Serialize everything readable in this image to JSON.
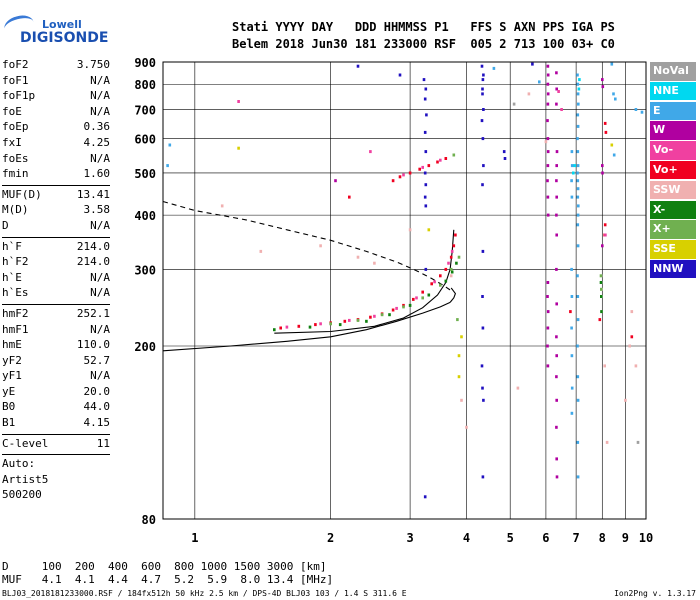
{
  "logo": {
    "top": "Lowell",
    "main": "DIGISONDE"
  },
  "header": {
    "line1": "Stati YYYY DAY   DDD HHMMSS P1   FFS S AXN PPS IGA PS",
    "line2": "Belem 2018 Jun30 181 233000 RSF  005 2 713 100 03+ C0"
  },
  "params": [
    {
      "k": "foF2",
      "v": "3.750"
    },
    {
      "k": "foF1",
      "v": "N/A"
    },
    {
      "k": "foF1p",
      "v": "N/A"
    },
    {
      "k": "foE",
      "v": "N/A"
    },
    {
      "k": "foEp",
      "v": "0.36"
    },
    {
      "k": "fxI",
      "v": "4.25"
    },
    {
      "k": "foEs",
      "v": "N/A"
    },
    {
      "k": "fmin",
      "v": "1.60"
    },
    {
      "sep": true
    },
    {
      "k": "MUF(D)",
      "v": "13.41"
    },
    {
      "k": "M(D)",
      "v": "3.58"
    },
    {
      "k": "D",
      "v": "N/A"
    },
    {
      "sep": true
    },
    {
      "k": "h`F",
      "v": "214.0"
    },
    {
      "k": "h`F2",
      "v": "214.0"
    },
    {
      "k": "h`E",
      "v": "N/A"
    },
    {
      "k": "h`Es",
      "v": "N/A"
    },
    {
      "sep": true
    },
    {
      "k": "hmF2",
      "v": "252.1"
    },
    {
      "k": "hmF1",
      "v": "N/A"
    },
    {
      "k": "hmE",
      "v": "110.0"
    },
    {
      "k": "yF2",
      "v": "52.7"
    },
    {
      "k": "yF1",
      "v": "N/A"
    },
    {
      "k": "yE",
      "v": "20.0"
    },
    {
      "k": "B0",
      "v": "44.0"
    },
    {
      "k": "B1",
      "v": "4.15"
    },
    {
      "sep": true
    },
    {
      "k": "C-level",
      "v": "11"
    },
    {
      "sep": true
    },
    {
      "k": "Auto:",
      "v": ""
    },
    {
      "k": "Artist5",
      "v": ""
    },
    {
      "k": "500200",
      "v": ""
    }
  ],
  "legend": [
    {
      "label": "NoVal",
      "color": "#a0a0a0"
    },
    {
      "label": "NNE",
      "color": "#00d8f0"
    },
    {
      "label": "E",
      "color": "#40a8e8"
    },
    {
      "label": "W",
      "color": "#b000a0"
    },
    {
      "label": "Vo-",
      "color": "#f040a0"
    },
    {
      "label": "Vo+",
      "color": "#f00020"
    },
    {
      "label": "SSW",
      "color": "#f0b0b0"
    },
    {
      "label": "X-",
      "color": "#108010"
    },
    {
      "label": "X+",
      "color": "#70b050"
    },
    {
      "label": "SSE",
      "color": "#d8d000"
    },
    {
      "label": "NNW",
      "color": "#2010c0"
    }
  ],
  "bottom": {
    "line1": "D     100  200  400  600  800 1000 1500 3000 [km]",
    "line2": "MUF   4.1  4.1  4.4  4.7  5.2  5.9  8.0 13.4 [MHz]"
  },
  "footer": {
    "left": "BLJ03_2018181233000.RSF / 184fx512h 50 kHz 2.5 km / DPS-4D BLJ03 103 / 1.4 S 311.6 E",
    "right": "Ion2Png v. 1.3.17"
  },
  "chart_data": {
    "type": "scatter",
    "title": "",
    "xlabel": "",
    "ylabel": "",
    "x_scale": "log",
    "y_scale": "log",
    "xlim": [
      0.85,
      10
    ],
    "ylim": [
      80,
      900
    ],
    "x_ticks": [
      1,
      2,
      3,
      4,
      5,
      6,
      7,
      8,
      9,
      10
    ],
    "y_ticks": [
      80,
      200,
      300,
      400,
      500,
      600,
      700,
      800,
      900
    ],
    "grid": true,
    "series": [
      {
        "name": "NNW",
        "color": "#2010c0",
        "points": [
          [
            3.22,
            820
          ],
          [
            3.25,
            780
          ],
          [
            3.24,
            740
          ],
          [
            3.26,
            680
          ],
          [
            3.24,
            620
          ],
          [
            3.25,
            560
          ],
          [
            3.24,
            500
          ],
          [
            3.25,
            470
          ],
          [
            3.24,
            440
          ],
          [
            3.25,
            420
          ],
          [
            3.25,
            300
          ],
          [
            3.24,
            90
          ],
          [
            4.33,
            880
          ],
          [
            4.35,
            820
          ],
          [
            4.34,
            760
          ],
          [
            4.36,
            700
          ],
          [
            4.33,
            660
          ],
          [
            4.35,
            600
          ],
          [
            4.36,
            520
          ],
          [
            4.34,
            470
          ],
          [
            4.35,
            330
          ],
          [
            4.34,
            260
          ],
          [
            4.35,
            220
          ],
          [
            4.33,
            180
          ],
          [
            4.34,
            160
          ],
          [
            4.36,
            150
          ],
          [
            4.35,
            100
          ],
          [
            4.85,
            560
          ],
          [
            4.87,
            540
          ],
          [
            4.36,
            840
          ],
          [
            4.34,
            780
          ],
          [
            2.85,
            840
          ],
          [
            5.6,
            890
          ],
          [
            2.3,
            880
          ]
        ]
      },
      {
        "name": "W",
        "color": "#b000a0",
        "points": [
          [
            6.06,
            880
          ],
          [
            6.07,
            840
          ],
          [
            6.06,
            800
          ],
          [
            6.07,
            760
          ],
          [
            6.06,
            720
          ],
          [
            6.05,
            660
          ],
          [
            6.06,
            600
          ],
          [
            6.07,
            560
          ],
          [
            6.06,
            520
          ],
          [
            6.05,
            480
          ],
          [
            6.06,
            440
          ],
          [
            6.07,
            400
          ],
          [
            6.06,
            280
          ],
          [
            6.05,
            260
          ],
          [
            6.07,
            240
          ],
          [
            6.06,
            220
          ],
          [
            6.05,
            200
          ],
          [
            6.06,
            180
          ],
          [
            6.33,
            850
          ],
          [
            6.34,
            780
          ],
          [
            6.33,
            720
          ],
          [
            6.35,
            560
          ],
          [
            6.34,
            520
          ],
          [
            6.33,
            480
          ],
          [
            6.34,
            440
          ],
          [
            6.33,
            400
          ],
          [
            6.34,
            360
          ],
          [
            6.33,
            300
          ],
          [
            6.34,
            250
          ],
          [
            6.33,
            210
          ],
          [
            6.34,
            190
          ],
          [
            6.33,
            170
          ],
          [
            6.34,
            150
          ],
          [
            6.33,
            130
          ],
          [
            6.34,
            110
          ],
          [
            6.35,
            100
          ],
          [
            8.0,
            820
          ],
          [
            8.02,
            790
          ],
          [
            8.0,
            520
          ],
          [
            8.01,
            500
          ],
          [
            2.05,
            480
          ],
          [
            8.0,
            340
          ]
        ]
      },
      {
        "name": "E",
        "color": "#40a8e8",
        "points": [
          [
            7.05,
            840
          ],
          [
            7.06,
            800
          ],
          [
            7.07,
            760
          ],
          [
            7.08,
            720
          ],
          [
            7.06,
            680
          ],
          [
            7.07,
            640
          ],
          [
            7.05,
            600
          ],
          [
            7.06,
            560
          ],
          [
            7.07,
            520
          ],
          [
            7.05,
            500
          ],
          [
            7.06,
            480
          ],
          [
            7.07,
            460
          ],
          [
            7.06,
            440
          ],
          [
            7.08,
            420
          ],
          [
            7.07,
            400
          ],
          [
            7.06,
            380
          ],
          [
            7.07,
            340
          ],
          [
            7.05,
            290
          ],
          [
            7.06,
            260
          ],
          [
            7.07,
            230
          ],
          [
            7.05,
            200
          ],
          [
            7.06,
            170
          ],
          [
            7.07,
            150
          ],
          [
            7.06,
            120
          ],
          [
            7.07,
            100
          ],
          [
            6.85,
            560
          ],
          [
            6.86,
            520
          ],
          [
            6.84,
            480
          ],
          [
            6.85,
            440
          ],
          [
            6.84,
            300
          ],
          [
            6.85,
            260
          ],
          [
            6.84,
            220
          ],
          [
            6.85,
            190
          ],
          [
            6.86,
            160
          ],
          [
            6.85,
            140
          ],
          [
            5.8,
            810
          ],
          [
            8.47,
            760
          ],
          [
            8.55,
            740
          ],
          [
            9.5,
            700
          ],
          [
            9.8,
            690
          ],
          [
            0.88,
            580
          ],
          [
            0.87,
            520
          ],
          [
            8.5,
            550
          ],
          [
            4.6,
            870
          ],
          [
            8.4,
            890
          ]
        ]
      },
      {
        "name": "Vo+",
        "color": "#f00020",
        "points": [
          [
            1.55,
            220
          ],
          [
            1.7,
            222
          ],
          [
            1.85,
            224
          ],
          [
            2.0,
            226
          ],
          [
            2.15,
            228
          ],
          [
            2.3,
            230
          ],
          [
            2.45,
            233
          ],
          [
            2.6,
            237
          ],
          [
            2.75,
            242
          ],
          [
            2.9,
            248
          ],
          [
            3.05,
            256
          ],
          [
            3.2,
            266
          ],
          [
            3.35,
            278
          ],
          [
            3.5,
            290
          ],
          [
            3.6,
            300
          ],
          [
            3.7,
            320
          ],
          [
            3.75,
            340
          ],
          [
            3.78,
            360
          ],
          [
            2.75,
            480
          ],
          [
            2.85,
            490
          ],
          [
            3.0,
            500
          ],
          [
            3.15,
            510
          ],
          [
            3.3,
            520
          ],
          [
            3.45,
            530
          ],
          [
            3.6,
            540
          ],
          [
            2.2,
            440
          ],
          [
            8.15,
            620
          ],
          [
            8.12,
            650
          ],
          [
            6.8,
            240
          ],
          [
            8.1,
            360
          ],
          [
            8.12,
            380
          ],
          [
            7.9,
            230
          ],
          [
            9.3,
            210
          ]
        ]
      },
      {
        "name": "Vo-",
        "color": "#f040a0",
        "points": [
          [
            1.6,
            221
          ],
          [
            1.9,
            225
          ],
          [
            2.2,
            229
          ],
          [
            2.5,
            234
          ],
          [
            2.8,
            244
          ],
          [
            3.1,
            258
          ],
          [
            3.4,
            281
          ],
          [
            3.65,
            310
          ],
          [
            3.72,
            330
          ],
          [
            2.9,
            495
          ],
          [
            3.2,
            515
          ],
          [
            3.5,
            535
          ],
          [
            1.25,
            730
          ],
          [
            2.45,
            560
          ],
          [
            6.4,
            770
          ],
          [
            6.5,
            700
          ],
          [
            8.13,
            360
          ]
        ]
      },
      {
        "name": "X-",
        "color": "#108010",
        "points": [
          [
            1.5,
            218
          ],
          [
            1.8,
            221
          ],
          [
            2.1,
            224
          ],
          [
            2.4,
            228
          ],
          [
            2.7,
            236
          ],
          [
            3.0,
            248
          ],
          [
            3.3,
            262
          ],
          [
            3.6,
            282
          ],
          [
            3.72,
            296
          ],
          [
            3.8,
            310
          ],
          [
            7.95,
            280
          ],
          [
            7.96,
            260
          ],
          [
            7.97,
            240
          ]
        ]
      },
      {
        "name": "X+",
        "color": "#70b050",
        "points": [
          [
            2.0,
            225
          ],
          [
            2.3,
            229
          ],
          [
            2.6,
            236
          ],
          [
            2.9,
            246
          ],
          [
            3.2,
            258
          ],
          [
            3.5,
            276
          ],
          [
            3.7,
            300
          ],
          [
            3.85,
            320
          ],
          [
            3.82,
            230
          ],
          [
            7.95,
            290
          ],
          [
            7.96,
            270
          ],
          [
            3.75,
            550
          ]
        ]
      },
      {
        "name": "SSW",
        "color": "#f0b0b0",
        "points": [
          [
            1.4,
            330
          ],
          [
            1.9,
            340
          ],
          [
            2.3,
            320
          ],
          [
            2.5,
            310
          ],
          [
            3.0,
            370
          ],
          [
            1.15,
            420
          ],
          [
            9.2,
            200
          ],
          [
            9.3,
            240
          ],
          [
            9.5,
            180
          ],
          [
            6.0,
            590
          ],
          [
            5.5,
            760
          ],
          [
            3.7,
            290
          ],
          [
            4.0,
            130
          ],
          [
            3.9,
            150
          ],
          [
            9.0,
            150
          ],
          [
            8.2,
            120
          ],
          [
            5.2,
            160
          ],
          [
            8.1,
            180
          ]
        ]
      },
      {
        "name": "SSE",
        "color": "#d8d000",
        "points": [
          [
            3.85,
            190
          ],
          [
            3.9,
            210
          ],
          [
            3.85,
            170
          ],
          [
            1.25,
            570
          ],
          [
            8.4,
            580
          ],
          [
            3.3,
            370
          ]
        ]
      },
      {
        "name": "NNE",
        "color": "#00d8f0",
        "points": [
          [
            7.12,
            820
          ],
          [
            7.1,
            780
          ],
          [
            6.95,
            520
          ],
          [
            6.9,
            500
          ]
        ]
      },
      {
        "name": "NoVal",
        "color": "#a0a0a0",
        "points": [
          [
            5.1,
            720
          ],
          [
            9.6,
            120
          ]
        ]
      }
    ],
    "curves": [
      {
        "style": "solid",
        "points": [
          [
            0.85,
            195
          ],
          [
            1.2,
            200
          ],
          [
            1.6,
            205
          ],
          [
            2.0,
            210
          ],
          [
            2.4,
            218
          ],
          [
            2.8,
            228
          ],
          [
            3.2,
            238
          ],
          [
            3.5,
            246
          ],
          [
            3.68,
            252
          ]
        ]
      },
      {
        "style": "solid",
        "points": [
          [
            1.5,
            214
          ],
          [
            2.0,
            216
          ],
          [
            2.5,
            222
          ],
          [
            2.9,
            232
          ],
          [
            3.2,
            245
          ],
          [
            3.45,
            262
          ],
          [
            3.6,
            280
          ],
          [
            3.68,
            300
          ],
          [
            3.72,
            330
          ],
          [
            3.75,
            370
          ]
        ]
      },
      {
        "style": "solid",
        "points": [
          [
            3.68,
            252
          ],
          [
            3.75,
            258
          ],
          [
            3.78,
            264
          ],
          [
            3.7,
            272
          ]
        ]
      },
      {
        "style": "dashed",
        "points": [
          [
            0.85,
            430
          ],
          [
            1.0,
            410
          ],
          [
            1.3,
            390
          ],
          [
            1.6,
            370
          ],
          [
            2.0,
            350
          ],
          [
            2.4,
            330
          ],
          [
            2.8,
            312
          ],
          [
            3.1,
            298
          ],
          [
            3.35,
            286
          ],
          [
            3.55,
            276
          ],
          [
            3.7,
            268
          ]
        ]
      }
    ]
  }
}
